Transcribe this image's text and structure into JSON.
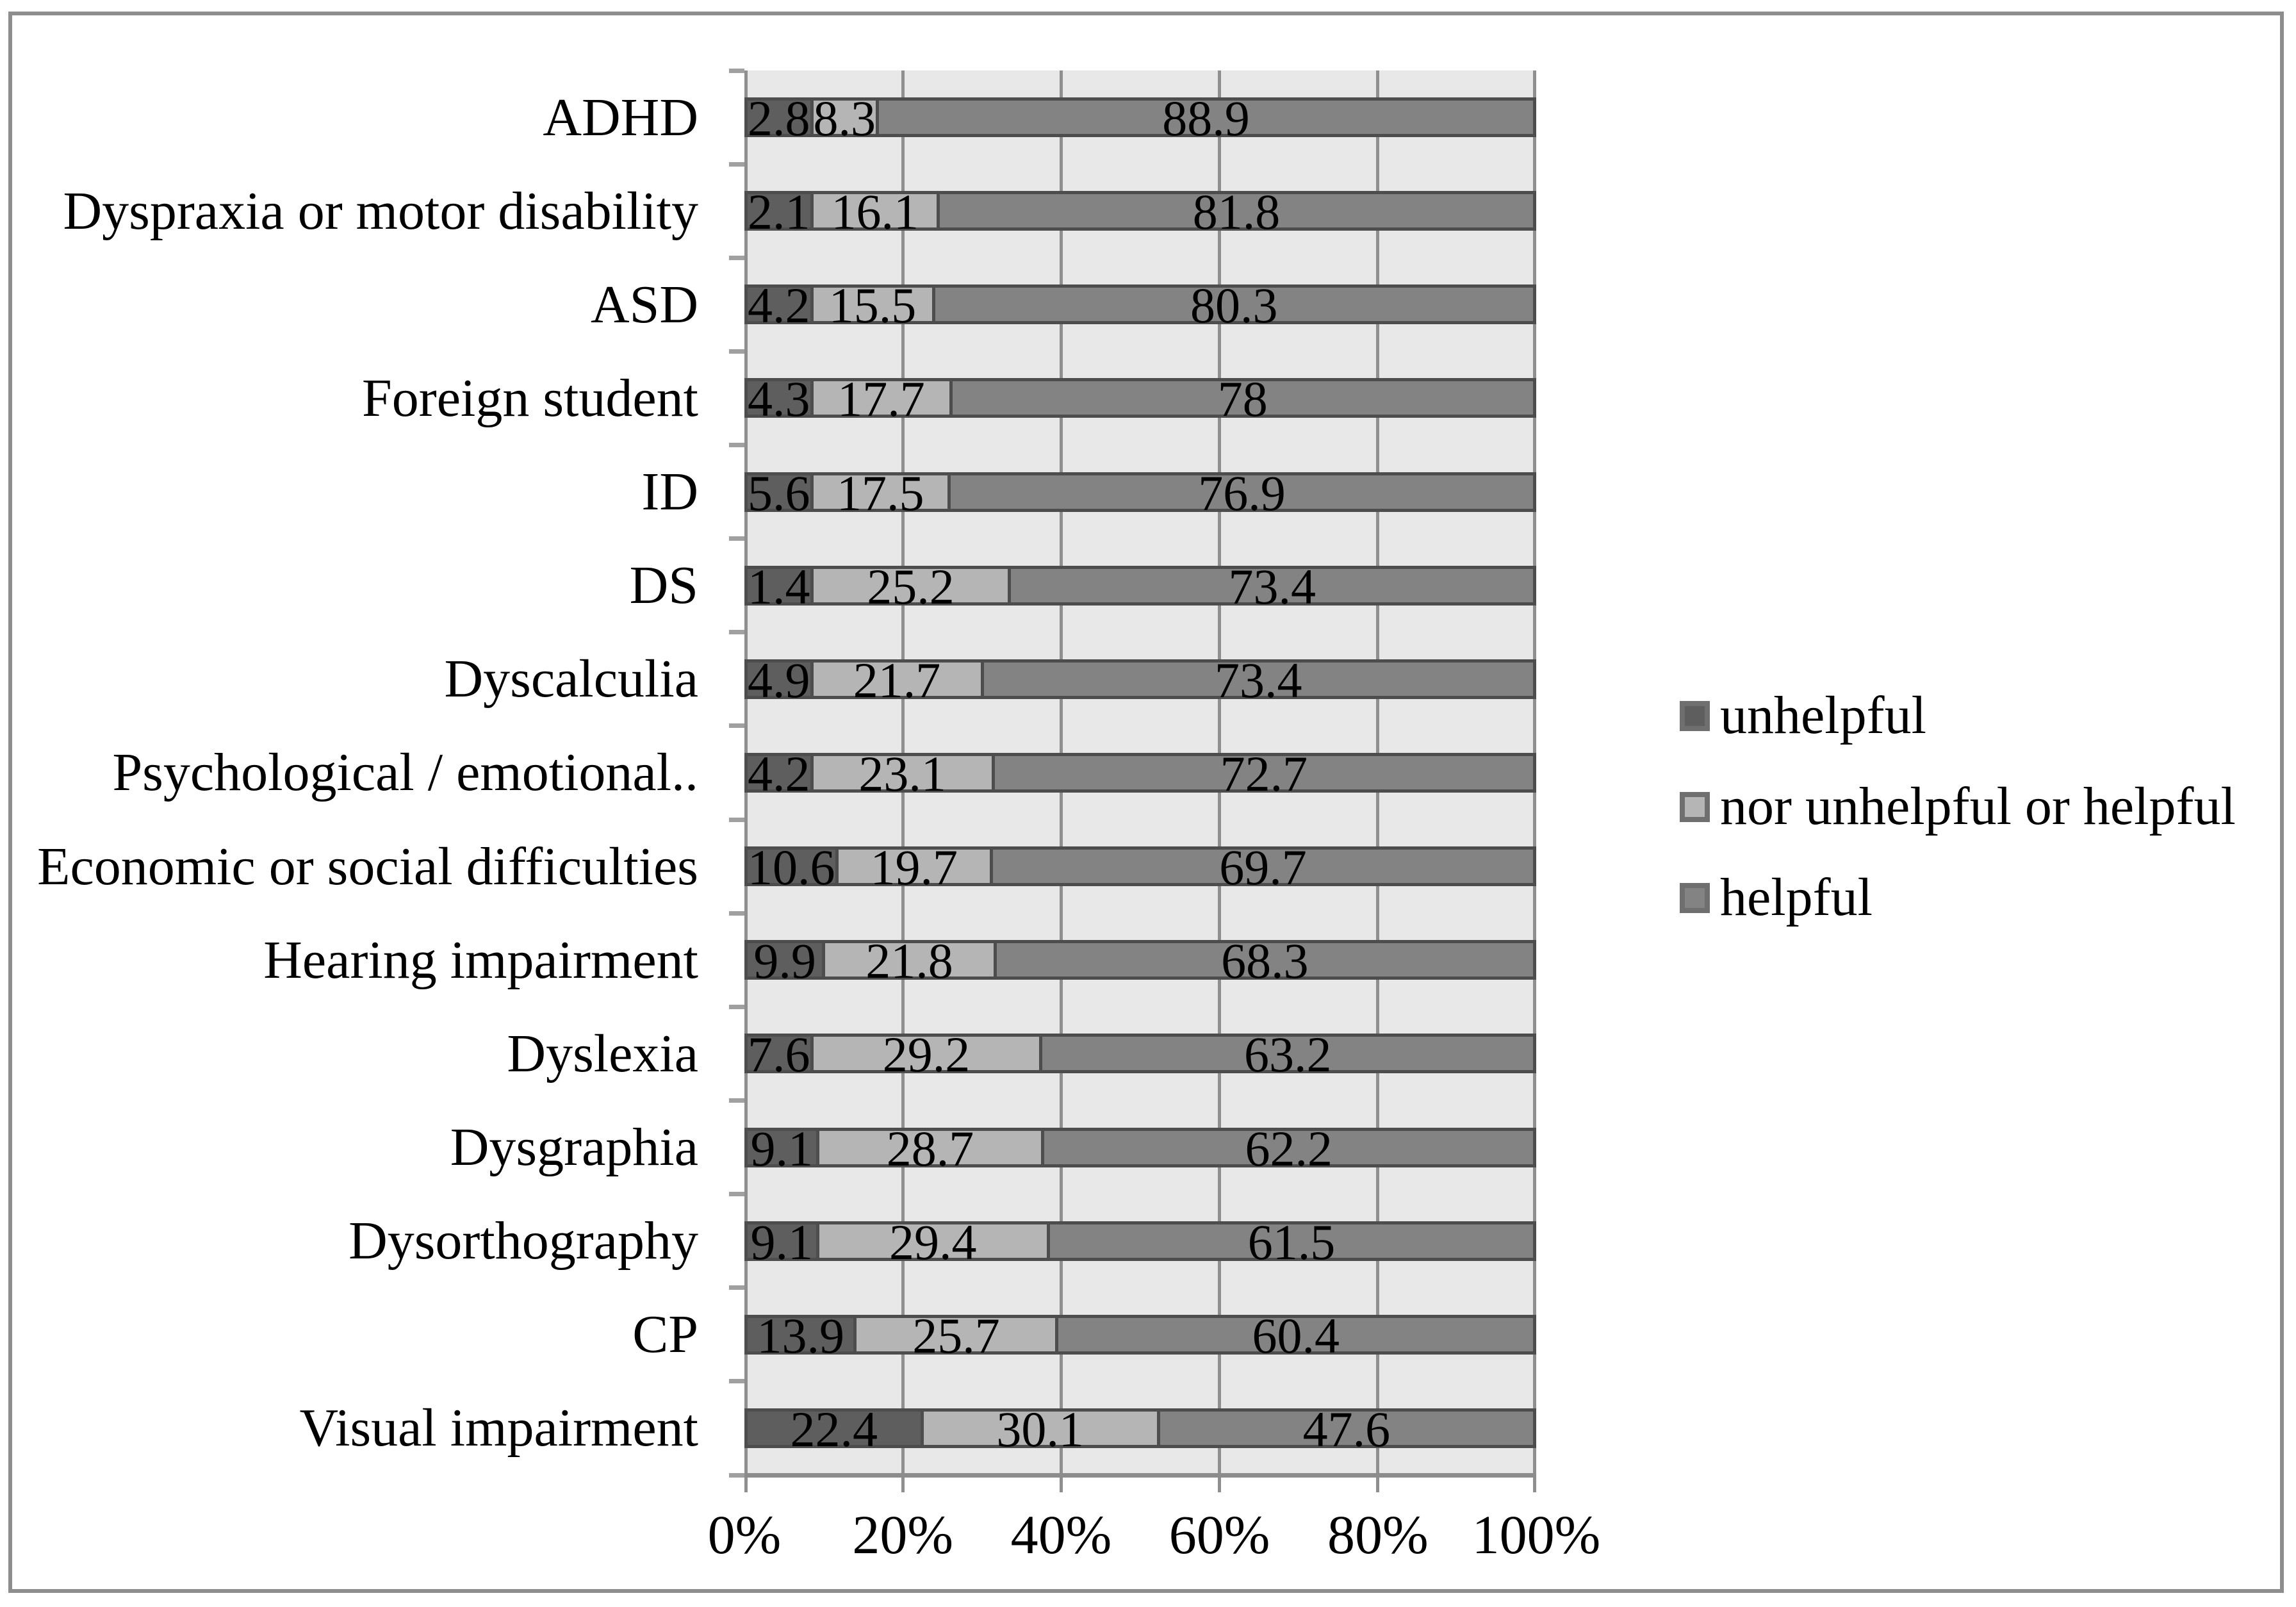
{
  "chart_data": {
    "type": "bar",
    "subtype": "horizontal-stacked-100pct",
    "title": "",
    "categories": [
      "ADHD",
      "Dyspraxia or motor disability",
      "ASD",
      "Foreign student",
      "ID",
      "DS",
      "Dyscalculia",
      "Psychological / emotional..",
      "Economic or social difficulties",
      "Hearing impairment",
      "Dyslexia",
      "Dysgraphia",
      "Dysorthography",
      "CP",
      "Visual impairment"
    ],
    "series": [
      {
        "name": "unhelpful",
        "color": "#5e5e5e",
        "values": [
          2.8,
          2.1,
          4.2,
          4.3,
          5.6,
          1.4,
          4.9,
          4.2,
          10.6,
          9.9,
          7.6,
          9.1,
          9.1,
          13.9,
          22.4
        ]
      },
      {
        "name": "nor unhelpful or helpful",
        "color": "#b5b5b5",
        "values": [
          8.3,
          16.1,
          15.5,
          17.7,
          17.5,
          25.2,
          21.7,
          23.1,
          19.7,
          21.8,
          29.2,
          28.7,
          29.4,
          25.7,
          30.1
        ]
      },
      {
        "name": "helpful",
        "color": "#838383",
        "values": [
          88.9,
          81.8,
          80.3,
          78,
          76.9,
          73.4,
          73.4,
          72.7,
          69.7,
          68.3,
          63.2,
          62.2,
          61.5,
          60.4,
          47.6
        ]
      }
    ],
    "x_axis": {
      "tick_labels": [
        "0%",
        "20%",
        "40%",
        "60%",
        "80%",
        "100%"
      ],
      "tick_values": [
        0,
        20,
        40,
        60,
        80,
        100
      ],
      "range": [
        0,
        100
      ],
      "grid": true
    },
    "legend": {
      "position": "right",
      "entries": [
        "unhelpful",
        "nor unhelpful or helpful",
        "helpful"
      ]
    }
  },
  "colors": {
    "plot_background": "#e8e8e8",
    "gridline": "#8f8f8f",
    "axis_line": "#8c8c8c",
    "row_tick": "#a0a0a0",
    "bar_border": "#4d4d4d",
    "legend_swatch_border": "#6f6f6f",
    "frame_border": "#8d8d8d",
    "text": "#000000"
  }
}
